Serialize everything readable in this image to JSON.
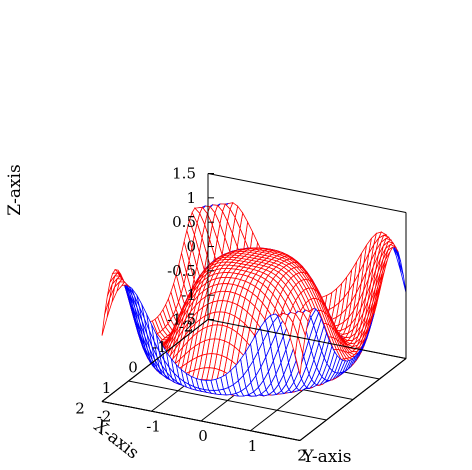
{
  "chart_data": {
    "type": "surface",
    "function": "z = cos(x^2 + y^2)",
    "xlabel": "X-axis",
    "ylabel": "Y-axis",
    "zlabel": "Z-axis",
    "xlim": [
      -2,
      2
    ],
    "ylim": [
      -2,
      2
    ],
    "zlim": [
      -1.5,
      1.5
    ],
    "xticks": [
      "-2",
      "-1",
      "0",
      "1",
      "2"
    ],
    "yticks": [
      "-2",
      "-1",
      "0",
      "1",
      "2"
    ],
    "zticks": [
      "-1.5",
      "-1",
      "-0.5",
      "0",
      "0.5",
      "1",
      "1.5"
    ],
    "x_tick_values": [
      -2,
      -1,
      0,
      1,
      2
    ],
    "y_tick_values": [
      -2,
      -1,
      0,
      1,
      2
    ],
    "z_tick_values": [
      -1.5,
      -1,
      -0.5,
      0,
      0.5,
      1,
      1.5
    ],
    "grid_samples": 40,
    "colors": {
      "top": "#ff0000",
      "bottom": "#0000ff",
      "frame": "#000000"
    }
  }
}
